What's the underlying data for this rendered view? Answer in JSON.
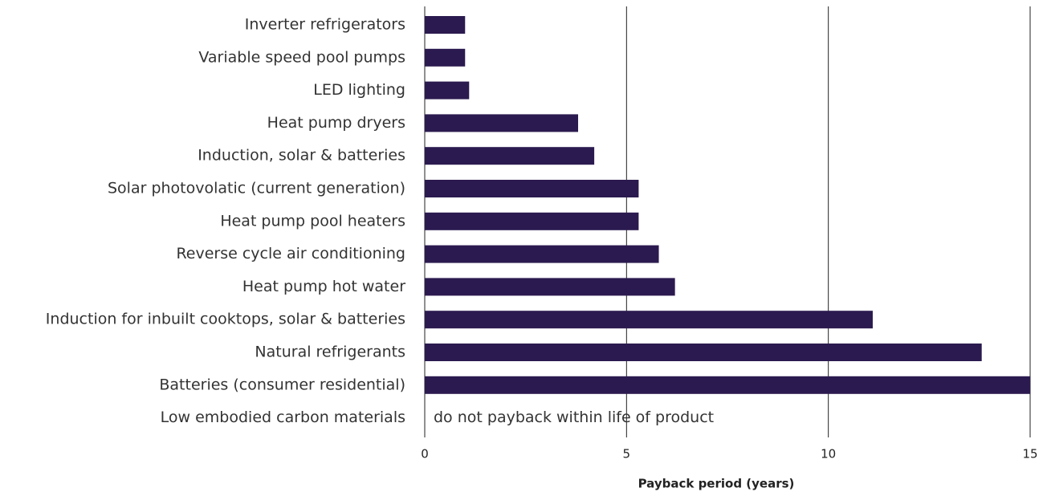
{
  "chart_data": {
    "type": "bar",
    "orientation": "horizontal",
    "categories": [
      "Inverter refrigerators",
      "Variable speed pool pumps",
      "LED lighting",
      "Heat pump dryers",
      "Induction, solar & batteries",
      "Solar photovolatic (current generation)",
      "Heat pump pool heaters",
      "Reverse cycle air conditioning",
      "Heat pump hot water",
      "Induction for inbuilt cooktops, solar & batteries",
      "Natural refrigerants",
      "Batteries (consumer residential)",
      "Low embodied carbon materials"
    ],
    "values": [
      1.0,
      1.0,
      1.1,
      3.8,
      4.2,
      5.3,
      5.3,
      5.8,
      6.2,
      11.1,
      13.8,
      15,
      null
    ],
    "color": "#2b1a4f",
    "annotation": "do not payback within life of product",
    "xlabel": "Payback period (years)",
    "xlim": [
      0,
      15
    ],
    "xticks": [
      0,
      5,
      10,
      15
    ],
    "grid": true
  }
}
